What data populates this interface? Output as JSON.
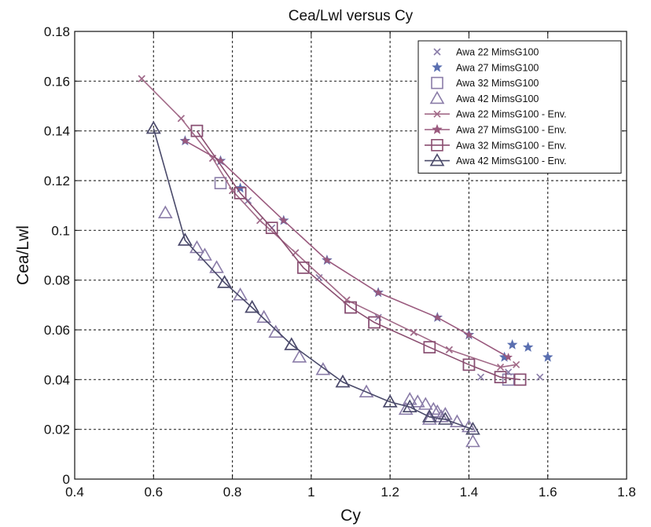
{
  "chart_data": {
    "type": "scatter",
    "title": "Cea/Lwl versus Cy",
    "xlabel": "Cy",
    "ylabel": "Cea/Lwl",
    "xlim": [
      0.4,
      1.8
    ],
    "ylim": [
      0,
      0.18
    ],
    "xticks": [
      "0.4",
      "0.6",
      "0.8",
      "1",
      "1.2",
      "1.4",
      "1.6",
      "1.8"
    ],
    "yticks": [
      "0",
      "0.02",
      "0.04",
      "0.06",
      "0.08",
      "0.1",
      "0.12",
      "0.14",
      "0.16",
      "0.18"
    ],
    "grid": true,
    "legend_position": "top-right",
    "series": [
      {
        "name": "Awa 22 MimsG100",
        "marker": "x",
        "color": "#8a7ca8",
        "line": false,
        "points": [
          [
            0.57,
            0.161
          ],
          [
            0.67,
            0.145
          ],
          [
            0.75,
            0.129
          ],
          [
            0.8,
            0.116
          ],
          [
            0.84,
            0.112
          ],
          [
            0.87,
            0.104
          ],
          [
            0.9,
            0.101
          ],
          [
            0.96,
            0.091
          ],
          [
            1.02,
            0.081
          ],
          [
            1.09,
            0.072
          ],
          [
            1.17,
            0.065
          ],
          [
            1.26,
            0.059
          ],
          [
            1.35,
            0.052
          ],
          [
            1.43,
            0.041
          ],
          [
            1.5,
            0.043
          ],
          [
            1.58,
            0.041
          ]
        ]
      },
      {
        "name": "Awa 27 MimsG100",
        "marker": "star",
        "color": "#5a6fb0",
        "line": false,
        "points": [
          [
            0.68,
            0.136
          ],
          [
            0.77,
            0.128
          ],
          [
            0.82,
            0.117
          ],
          [
            0.93,
            0.104
          ],
          [
            1.04,
            0.088
          ],
          [
            1.17,
            0.075
          ],
          [
            1.32,
            0.065
          ],
          [
            1.4,
            0.058
          ],
          [
            1.49,
            0.049
          ],
          [
            1.51,
            0.054
          ],
          [
            1.55,
            0.053
          ],
          [
            1.6,
            0.049
          ]
        ]
      },
      {
        "name": "Awa 32 MimsG100",
        "marker": "square",
        "color": "#8a7ca8",
        "line": false,
        "points": [
          [
            0.71,
            0.14
          ],
          [
            0.77,
            0.119
          ],
          [
            0.82,
            0.115
          ],
          [
            0.9,
            0.101
          ],
          [
            0.98,
            0.085
          ],
          [
            1.1,
            0.069
          ],
          [
            1.16,
            0.063
          ],
          [
            1.3,
            0.053
          ],
          [
            1.4,
            0.046
          ],
          [
            1.48,
            0.041
          ],
          [
            1.5,
            0.04
          ],
          [
            1.53,
            0.04
          ]
        ]
      },
      {
        "name": "Awa 42 MimsG100",
        "marker": "triangle",
        "color": "#8a7ca8",
        "line": false,
        "points": [
          [
            0.6,
            0.141
          ],
          [
            0.63,
            0.107
          ],
          [
            0.68,
            0.096
          ],
          [
            0.71,
            0.093
          ],
          [
            0.73,
            0.09
          ],
          [
            0.76,
            0.085
          ],
          [
            0.78,
            0.079
          ],
          [
            0.82,
            0.074
          ],
          [
            0.85,
            0.069
          ],
          [
            0.88,
            0.065
          ],
          [
            0.91,
            0.059
          ],
          [
            0.95,
            0.054
          ],
          [
            0.97,
            0.049
          ],
          [
            1.03,
            0.044
          ],
          [
            1.08,
            0.039
          ],
          [
            1.14,
            0.035
          ],
          [
            1.2,
            0.031
          ],
          [
            1.24,
            0.028
          ],
          [
            1.25,
            0.032
          ],
          [
            1.27,
            0.031
          ],
          [
            1.29,
            0.03
          ],
          [
            1.3,
            0.024
          ],
          [
            1.31,
            0.028
          ],
          [
            1.32,
            0.027
          ],
          [
            1.33,
            0.025
          ],
          [
            1.34,
            0.026
          ],
          [
            1.37,
            0.023
          ],
          [
            1.4,
            0.021
          ],
          [
            1.41,
            0.015
          ]
        ]
      },
      {
        "name": "Awa 22 MimsG100 - Env.",
        "marker": "x",
        "color": "#a26a88",
        "line": true,
        "points": [
          [
            0.57,
            0.161
          ],
          [
            0.67,
            0.145
          ],
          [
            0.75,
            0.129
          ],
          [
            0.8,
            0.116
          ],
          [
            0.87,
            0.104
          ],
          [
            0.96,
            0.091
          ],
          [
            1.09,
            0.072
          ],
          [
            1.26,
            0.059
          ],
          [
            1.35,
            0.052
          ],
          [
            1.48,
            0.045
          ],
          [
            1.52,
            0.046
          ]
        ]
      },
      {
        "name": "Awa 27 MimsG100 - Env.",
        "marker": "star",
        "color": "#9a5a7e",
        "line": true,
        "points": [
          [
            0.68,
            0.136
          ],
          [
            0.77,
            0.128
          ],
          [
            0.93,
            0.104
          ],
          [
            1.04,
            0.088
          ],
          [
            1.17,
            0.075
          ],
          [
            1.32,
            0.065
          ],
          [
            1.4,
            0.058
          ],
          [
            1.5,
            0.049
          ]
        ]
      },
      {
        "name": "Awa 32 MimsG100 - Env.",
        "marker": "square",
        "color": "#8a4e70",
        "line": true,
        "points": [
          [
            0.71,
            0.14
          ],
          [
            0.82,
            0.115
          ],
          [
            0.9,
            0.101
          ],
          [
            0.98,
            0.085
          ],
          [
            1.1,
            0.069
          ],
          [
            1.16,
            0.063
          ],
          [
            1.3,
            0.053
          ],
          [
            1.4,
            0.046
          ],
          [
            1.48,
            0.041
          ],
          [
            1.53,
            0.04
          ]
        ]
      },
      {
        "name": "Awa 42 MimsG100 - Env.",
        "marker": "triangle",
        "color": "#4a4a6a",
        "line": true,
        "points": [
          [
            0.6,
            0.141
          ],
          [
            0.68,
            0.096
          ],
          [
            0.78,
            0.079
          ],
          [
            0.85,
            0.069
          ],
          [
            0.95,
            0.054
          ],
          [
            1.08,
            0.039
          ],
          [
            1.2,
            0.031
          ],
          [
            1.25,
            0.029
          ],
          [
            1.3,
            0.025
          ],
          [
            1.34,
            0.024
          ],
          [
            1.41,
            0.02
          ]
        ]
      }
    ]
  }
}
